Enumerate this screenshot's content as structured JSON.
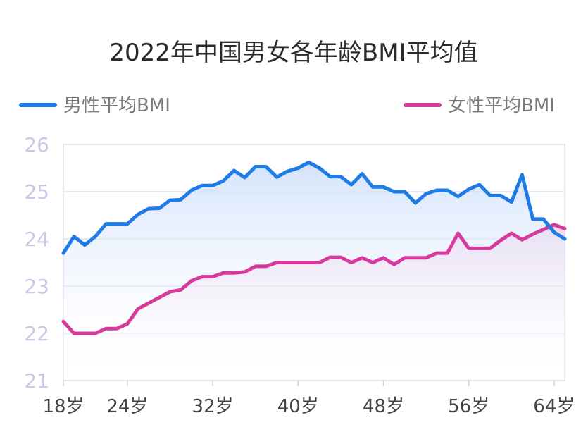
{
  "chart_data": {
    "type": "line",
    "title": "2022年中国男女各年龄BMI平均值",
    "legend_placement": "top",
    "grid": true,
    "ylim": [
      21,
      26
    ],
    "y_ticks": [
      21,
      22,
      23,
      24,
      25,
      26
    ],
    "x_range": [
      18,
      65
    ],
    "x_ticks": [
      18,
      24,
      32,
      40,
      48,
      56,
      64
    ],
    "x_tick_labels": [
      "18岁",
      "24岁",
      "32岁",
      "40岁",
      "48岁",
      "56岁",
      "64岁"
    ],
    "x": [
      18,
      19,
      20,
      21,
      22,
      23,
      24,
      25,
      26,
      27,
      28,
      29,
      30,
      31,
      32,
      33,
      34,
      35,
      36,
      37,
      38,
      39,
      40,
      41,
      42,
      43,
      44,
      45,
      46,
      47,
      48,
      49,
      50,
      51,
      52,
      53,
      54,
      55,
      56,
      57,
      58,
      59,
      60,
      61,
      62,
      63,
      64,
      65
    ],
    "series": [
      {
        "name": "男性平均BMI",
        "color": "#1f7be6",
        "fill_color": "#cfe0fb",
        "values": [
          23.7,
          24.05,
          23.87,
          24.05,
          24.32,
          24.32,
          24.32,
          24.52,
          24.64,
          24.65,
          24.82,
          24.83,
          25.03,
          25.13,
          25.13,
          25.23,
          25.45,
          25.3,
          25.53,
          25.53,
          25.31,
          25.43,
          25.5,
          25.62,
          25.5,
          25.32,
          25.32,
          25.15,
          25.38,
          25.1,
          25.1,
          25.0,
          25.0,
          24.76,
          24.96,
          25.03,
          25.03,
          24.9,
          25.05,
          25.15,
          24.92,
          24.92,
          24.78,
          25.36,
          24.42,
          24.42,
          24.14,
          24.0
        ]
      },
      {
        "name": "女性平均BMI",
        "color": "#d63a9a",
        "fill_color": "#f3cfe6",
        "values": [
          22.25,
          22.0,
          22.0,
          22.0,
          22.1,
          22.1,
          22.2,
          22.52,
          22.64,
          22.76,
          22.88,
          22.92,
          23.11,
          23.2,
          23.2,
          23.28,
          23.28,
          23.3,
          23.42,
          23.42,
          23.5,
          23.5,
          23.5,
          23.5,
          23.5,
          23.61,
          23.61,
          23.5,
          23.6,
          23.5,
          23.6,
          23.46,
          23.6,
          23.6,
          23.6,
          23.7,
          23.7,
          24.12,
          23.8,
          23.8,
          23.8,
          23.97,
          24.12,
          23.98,
          24.1,
          24.2,
          24.3,
          24.22
        ]
      }
    ]
  }
}
